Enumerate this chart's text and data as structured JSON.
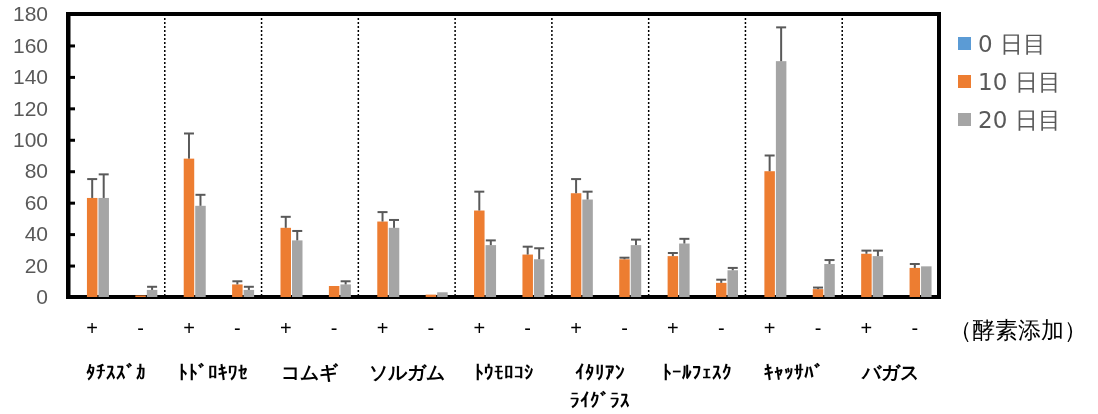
{
  "chart_data": {
    "type": "bar",
    "categories": [
      "+",
      "-",
      "+",
      "-",
      "+",
      "-",
      "+",
      "-",
      "+",
      "-",
      "+",
      "-",
      "+",
      "-",
      "+",
      "-",
      "+",
      "-"
    ],
    "series": [
      {
        "name": "0 日目",
        "color": "#5b9bd5",
        "values": [
          null,
          null,
          null,
          null,
          null,
          null,
          null,
          null,
          null,
          null,
          null,
          null,
          null,
          null,
          null,
          null,
          null,
          null
        ]
      },
      {
        "name": "10 日目",
        "color": "#ed7d31",
        "values": [
          63,
          1,
          88,
          8,
          44,
          7,
          48,
          1.5,
          55,
          27,
          66,
          24,
          26,
          9,
          80,
          5,
          27.5,
          18.5
        ],
        "errors": [
          [
            63,
            75
          ],
          null,
          [
            88,
            104
          ],
          [
            8,
            10
          ],
          [
            44,
            51
          ],
          null,
          [
            48,
            54
          ],
          null,
          [
            55,
            67
          ],
          [
            27,
            32
          ],
          [
            66,
            75
          ],
          [
            24,
            25
          ],
          [
            26,
            28
          ],
          [
            9,
            11
          ],
          [
            80,
            90
          ],
          [
            5,
            6
          ],
          [
            27.5,
            29.5
          ],
          [
            18.5,
            21
          ]
        ]
      },
      {
        "name": "20 日目",
        "color": "#a5a5a5",
        "values": [
          63,
          4.5,
          58,
          4.5,
          36,
          8,
          44,
          3,
          33,
          24,
          62,
          33,
          34,
          17,
          150,
          21,
          26,
          19.5
        ],
        "errors": [
          [
            63,
            78
          ],
          [
            4.5,
            6.5
          ],
          [
            58,
            65
          ],
          [
            4.5,
            6.5
          ],
          [
            36,
            42
          ],
          [
            8,
            10
          ],
          [
            44,
            49
          ],
          null,
          [
            33,
            36
          ],
          [
            24,
            31
          ],
          [
            62,
            67
          ],
          [
            33,
            36.5
          ],
          [
            34,
            37
          ],
          [
            17,
            18.5
          ],
          [
            150,
            171.5
          ],
          [
            21,
            23.5
          ],
          [
            26,
            29.5
          ],
          null
        ]
      }
    ],
    "ylim": [
      0,
      180
    ],
    "yticks": [
      0,
      20,
      40,
      60,
      80,
      100,
      120,
      140,
      160,
      180
    ],
    "xlabel": "（酵素添加）",
    "annotations": [
      "ﾀﾁｽｽﾞｶ",
      "ﾄﾄﾞﾛｷﾜｾ",
      "コムギ",
      "ソルガム",
      "ﾄｳﾓﾛｺｼ",
      "ｲﾀﾘｱﾝﾗｲｸﾞﾗｽ",
      "ﾄｰﾙﾌｪｽｸ",
      "ｷｬｯｻﾊﾞ",
      "バガス"
    ],
    "legend": "right",
    "grid": false
  }
}
